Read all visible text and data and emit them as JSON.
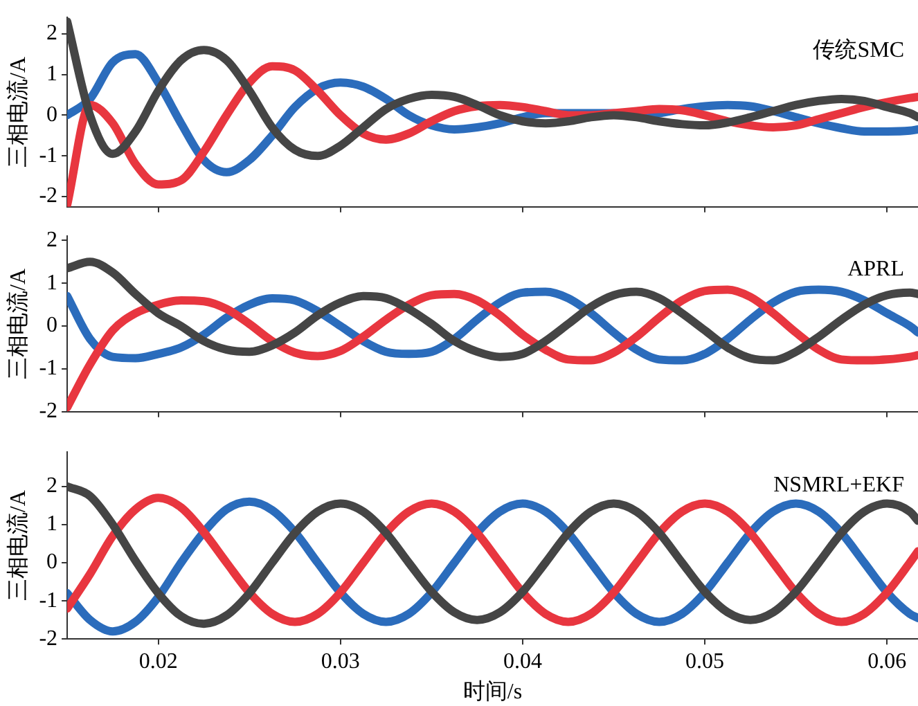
{
  "chart_data": [
    {
      "type": "line",
      "ylabel": "三相电流/A",
      "annotations": [
        "传统SMC"
      ],
      "tick_labels": "y",
      "grid": false,
      "legend": false,
      "marker": "none",
      "line_style": "solid",
      "x": [
        0.015,
        0.01625,
        0.0175,
        0.01875,
        0.02,
        0.02125,
        0.0225,
        0.02375,
        0.025,
        0.02625,
        0.0275,
        0.02875,
        0.03,
        0.03125,
        0.0325,
        0.03375,
        0.035,
        0.03625,
        0.0375,
        0.03875,
        0.04,
        0.04125,
        0.0425,
        0.04375,
        0.045,
        0.04625,
        0.0475,
        0.04875,
        0.05,
        0.05125,
        0.0525,
        0.05375,
        0.055,
        0.05625,
        0.0575,
        0.05875,
        0.06,
        0.06125,
        0.0617
      ],
      "xlim": [
        0.015,
        0.0617
      ],
      "xticks": [
        0.02,
        0.03,
        0.04,
        0.05,
        0.06
      ],
      "ylim": [
        -2.25,
        2.4
      ],
      "yticks": [
        -2,
        -1,
        0,
        1,
        2
      ],
      "series": [
        {
          "color": "#454545",
          "values": [
            2.3,
            0.0,
            -0.95,
            -0.4,
            0.6,
            1.35,
            1.6,
            1.35,
            0.6,
            -0.3,
            -0.85,
            -1.0,
            -0.75,
            -0.3,
            0.15,
            0.4,
            0.5,
            0.45,
            0.25,
            0.0,
            -0.15,
            -0.2,
            -0.15,
            -0.05,
            0.0,
            -0.05,
            -0.15,
            -0.22,
            -0.25,
            -0.18,
            -0.05,
            0.1,
            0.25,
            0.35,
            0.4,
            0.35,
            0.2,
            0.05,
            -0.05
          ]
        },
        {
          "color": "#e8363f",
          "values": [
            -2.2,
            0.25,
            -0.2,
            -1.2,
            -1.7,
            -1.6,
            -0.9,
            0.0,
            0.8,
            1.2,
            1.1,
            0.6,
            0.0,
            -0.45,
            -0.6,
            -0.45,
            -0.15,
            0.1,
            0.22,
            0.25,
            0.2,
            0.1,
            0.0,
            0.0,
            0.05,
            0.1,
            0.15,
            0.12,
            0.0,
            -0.15,
            -0.25,
            -0.3,
            -0.25,
            -0.1,
            0.05,
            0.2,
            0.32,
            0.42,
            0.45
          ]
        },
        {
          "color": "#2b6cbc",
          "values": [
            0.0,
            0.4,
            1.3,
            1.5,
            0.8,
            -0.2,
            -1.1,
            -1.4,
            -1.1,
            -0.5,
            0.2,
            0.65,
            0.8,
            0.7,
            0.4,
            0.0,
            -0.25,
            -0.35,
            -0.3,
            -0.2,
            -0.05,
            0.05,
            0.05,
            0.05,
            0.05,
            0.0,
            0.05,
            0.15,
            0.22,
            0.25,
            0.22,
            0.1,
            -0.05,
            -0.2,
            -0.32,
            -0.4,
            -0.4,
            -0.38,
            -0.35
          ]
        }
      ]
    },
    {
      "type": "line",
      "ylabel": "三相电流/A",
      "annotations": [
        "APRL"
      ],
      "tick_labels": "y",
      "grid": false,
      "legend": false,
      "marker": "none",
      "line_style": "solid",
      "x": [
        0.015,
        0.01625,
        0.0175,
        0.01875,
        0.02,
        0.02125,
        0.0225,
        0.02375,
        0.025,
        0.02625,
        0.0275,
        0.02875,
        0.03,
        0.03125,
        0.0325,
        0.03375,
        0.035,
        0.03625,
        0.0375,
        0.03875,
        0.04,
        0.04125,
        0.0425,
        0.04375,
        0.045,
        0.04625,
        0.0475,
        0.04875,
        0.05,
        0.05125,
        0.0525,
        0.05375,
        0.055,
        0.05625,
        0.0575,
        0.05875,
        0.06,
        0.06125,
        0.0617
      ],
      "xlim": [
        0.015,
        0.0617
      ],
      "xticks": [
        0.02,
        0.03,
        0.04,
        0.05,
        0.06
      ],
      "ylim": [
        -2,
        2.1
      ],
      "yticks": [
        -2,
        -1,
        0,
        1,
        2
      ],
      "series": [
        {
          "color": "#454545",
          "values": [
            1.35,
            1.5,
            1.25,
            0.75,
            0.3,
            0.0,
            -0.35,
            -0.55,
            -0.6,
            -0.45,
            -0.15,
            0.25,
            0.55,
            0.7,
            0.65,
            0.4,
            0.05,
            -0.35,
            -0.6,
            -0.72,
            -0.65,
            -0.35,
            0.05,
            0.45,
            0.72,
            0.8,
            0.65,
            0.3,
            -0.1,
            -0.5,
            -0.75,
            -0.8,
            -0.6,
            -0.25,
            0.15,
            0.5,
            0.72,
            0.78,
            0.75
          ]
        },
        {
          "color": "#e8363f",
          "values": [
            -1.9,
            -0.9,
            -0.1,
            0.3,
            0.5,
            0.6,
            0.58,
            0.4,
            0.05,
            -0.35,
            -0.62,
            -0.7,
            -0.58,
            -0.25,
            0.15,
            0.5,
            0.72,
            0.75,
            0.6,
            0.25,
            -0.2,
            -0.55,
            -0.78,
            -0.8,
            -0.62,
            -0.25,
            0.2,
            0.6,
            0.82,
            0.85,
            0.68,
            0.3,
            -0.15,
            -0.55,
            -0.78,
            -0.8,
            -0.78,
            -0.72,
            -0.68
          ]
        },
        {
          "color": "#2b6cbc",
          "values": [
            0.7,
            -0.3,
            -0.72,
            -0.75,
            -0.65,
            -0.5,
            -0.2,
            0.2,
            0.5,
            0.65,
            0.6,
            0.35,
            0.0,
            -0.35,
            -0.6,
            -0.65,
            -0.6,
            -0.3,
            0.15,
            0.55,
            0.78,
            0.8,
            0.65,
            0.3,
            -0.15,
            -0.55,
            -0.78,
            -0.8,
            -0.65,
            -0.3,
            0.15,
            0.55,
            0.8,
            0.85,
            0.8,
            0.6,
            0.3,
            0.0,
            -0.15
          ]
        }
      ]
    },
    {
      "type": "line",
      "ylabel": "三相电流/A",
      "xlabel": "时间/s",
      "annotations": [
        "NSMRL+EKF"
      ],
      "grid": false,
      "legend": false,
      "marker": "none",
      "line_style": "solid",
      "x": [
        0.015,
        0.01625,
        0.0175,
        0.01875,
        0.02,
        0.02125,
        0.0225,
        0.02375,
        0.025,
        0.02625,
        0.0275,
        0.02875,
        0.03,
        0.03125,
        0.0325,
        0.03375,
        0.035,
        0.03625,
        0.0375,
        0.03875,
        0.04,
        0.04125,
        0.0425,
        0.04375,
        0.045,
        0.04625,
        0.0475,
        0.04875,
        0.05,
        0.05125,
        0.0525,
        0.05375,
        0.055,
        0.05625,
        0.0575,
        0.05875,
        0.06,
        0.06125,
        0.0617
      ],
      "xlim": [
        0.015,
        0.0617
      ],
      "xticks": [
        0.02,
        0.03,
        0.04,
        0.05,
        0.06
      ],
      "ylim": [
        -2,
        2.9
      ],
      "yticks": [
        -2,
        -1,
        0,
        1,
        2
      ],
      "series": [
        {
          "color": "#454545",
          "values": [
            2.0,
            1.75,
            1.0,
            0.05,
            -0.8,
            -1.4,
            -1.6,
            -1.38,
            -0.8,
            0,
            0.78,
            1.34,
            1.55,
            1.34,
            0.78,
            0,
            -0.76,
            -1.3,
            -1.5,
            -1.3,
            -0.76,
            0,
            0.78,
            1.34,
            1.55,
            1.34,
            0.78,
            0,
            -0.76,
            -1.3,
            -1.5,
            -1.3,
            -0.76,
            0,
            0.78,
            1.34,
            1.55,
            1.34,
            1.1
          ]
        },
        {
          "color": "#e8363f",
          "values": [
            -1.2,
            -0.3,
            0.7,
            1.4,
            1.7,
            1.45,
            0.8,
            0,
            -0.78,
            -1.34,
            -1.55,
            -1.34,
            -0.78,
            0,
            0.78,
            1.34,
            1.55,
            1.34,
            0.78,
            0,
            -0.78,
            -1.34,
            -1.55,
            -1.34,
            -0.78,
            0,
            0.78,
            1.34,
            1.55,
            1.34,
            0.78,
            0,
            -0.78,
            -1.34,
            -1.55,
            -1.34,
            -0.78,
            0,
            0.3
          ]
        },
        {
          "color": "#2b6cbc",
          "values": [
            -0.8,
            -1.5,
            -1.8,
            -1.55,
            -0.9,
            0,
            0.8,
            1.4,
            1.6,
            1.38,
            0.8,
            0,
            -0.78,
            -1.34,
            -1.55,
            -1.34,
            -0.78,
            0,
            0.78,
            1.34,
            1.55,
            1.34,
            0.78,
            0,
            -0.78,
            -1.34,
            -1.55,
            -1.34,
            -0.78,
            0,
            0.78,
            1.34,
            1.55,
            1.34,
            0.78,
            0,
            -0.78,
            -1.34,
            -1.45
          ]
        }
      ]
    }
  ]
}
